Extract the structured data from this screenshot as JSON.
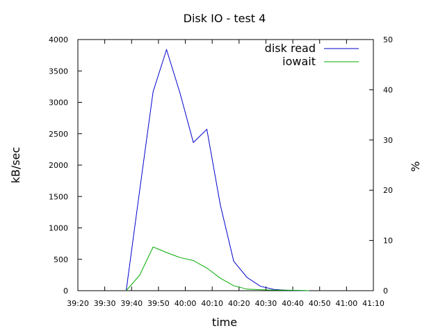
{
  "chart_data": {
    "type": "line",
    "title": "Disk IO - test 4",
    "xlabel": "time",
    "ylabel": "kB/sec",
    "y2label": "%",
    "xlim": [
      "39:20",
      "41:10"
    ],
    "ylim": [
      0,
      4000
    ],
    "y2lim": [
      0,
      50
    ],
    "x_ticks": [
      "39:20",
      "39:30",
      "39:40",
      "39:50",
      "40:00",
      "40:10",
      "40:20",
      "40:30",
      "40:40",
      "40:50",
      "41:00",
      "41:10"
    ],
    "y_ticks": [
      "0",
      "500",
      "1000",
      "1500",
      "2000",
      "2500",
      "3000",
      "3500",
      "4000"
    ],
    "y2_ticks": [
      "0",
      "10",
      "20",
      "30",
      "40",
      "50"
    ],
    "legend_position": "top-right",
    "grid": false,
    "series": [
      {
        "name": "disk read",
        "axis": "left",
        "color": "#0000cc",
        "x": [
          "39:38",
          "39:43",
          "39:48",
          "39:53",
          "39:58",
          "40:03",
          "40:08",
          "40:13",
          "40:18",
          "40:23",
          "40:28",
          "40:33",
          "40:38",
          "40:46"
        ],
        "y": [
          0,
          1600,
          3170,
          3840,
          3150,
          2360,
          2570,
          1370,
          470,
          210,
          70,
          20,
          5,
          0
        ]
      },
      {
        "name": "iowait",
        "axis": "right",
        "color": "#00aa00",
        "x": [
          "39:38",
          "39:43",
          "39:48",
          "39:53",
          "39:58",
          "40:03",
          "40:08",
          "40:13",
          "40:18",
          "40:23",
          "40:28",
          "40:33",
          "40:38",
          "40:46"
        ],
        "y": [
          0,
          3.1,
          8.7,
          7.6,
          6.6,
          6.0,
          4.5,
          2.5,
          1.0,
          0.3,
          0.2,
          0.1,
          0.1,
          0
        ]
      }
    ]
  }
}
